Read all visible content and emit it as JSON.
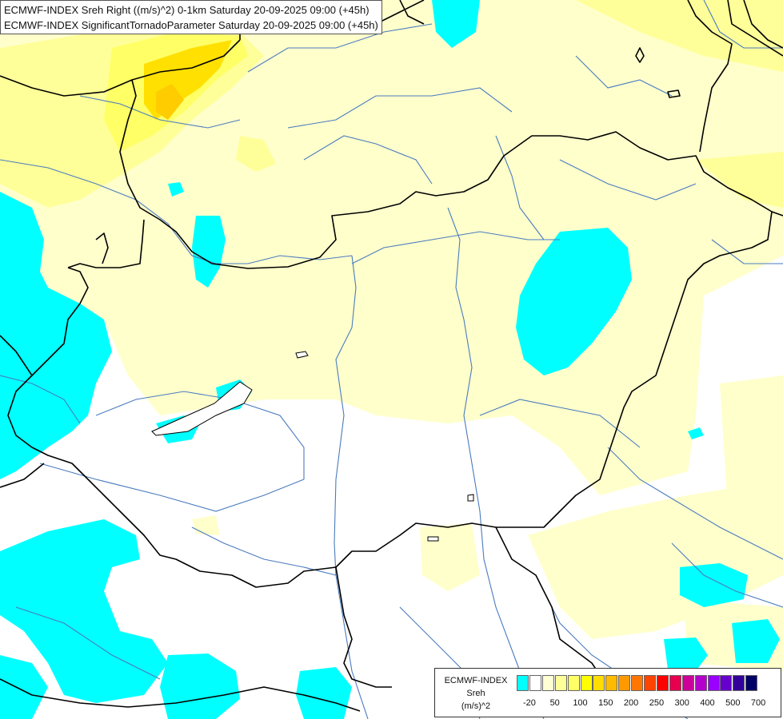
{
  "title": {
    "line1": "ECMWF-INDEX Sreh Right ((m/s)^2) 0-1km Saturday 20-09-2025 09:00 (+45h)",
    "line2": "ECMWF-INDEX SignificantTornadoParameter Saturday 20-09-2025 09:00 (+45h)"
  },
  "legend": {
    "label1": "ECMWF-INDEX",
    "label2": "Sreh",
    "label3": "(m/s)^2",
    "colors": [
      "#00ffff",
      "#ffffff",
      "#ffffd4",
      "#ffff99",
      "#ffff66",
      "#ffff00",
      "#ffdd00",
      "#ffbb00",
      "#ff9900",
      "#ff7700",
      "#ff4400",
      "#ff0000",
      "#e6004d",
      "#cc0099",
      "#b300cc",
      "#9900ff",
      "#6600cc",
      "#330099",
      "#000066"
    ],
    "ticks": [
      "-20",
      "50",
      "100",
      "150",
      "200",
      "250",
      "300",
      "400",
      "500",
      "700"
    ]
  },
  "map": {
    "fill_colors": {
      "cyan": "#00ffff",
      "pale_yellow": "#ffffcc",
      "light_yellow": "#ffff99",
      "yellow": "#ffff66",
      "gold": "#ffe000"
    },
    "border_color": "#000000",
    "river_color": "#4a7bbf"
  }
}
